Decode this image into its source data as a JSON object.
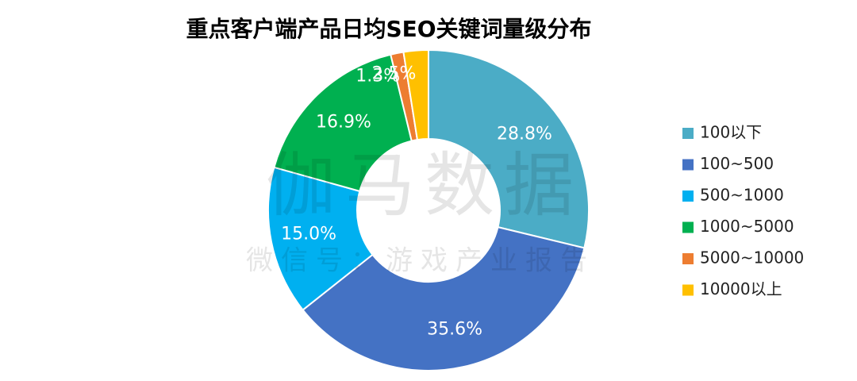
{
  "chart_data": {
    "type": "donut",
    "title": "重点客户端产品日均SEO关键词量级分布",
    "categories": [
      "100以下",
      "100~500",
      "500~1000",
      "1000~5000",
      "5000~10000",
      "10000以上"
    ],
    "values": [
      28.8,
      35.6,
      15.0,
      16.9,
      1.3,
      2.5
    ],
    "value_labels": [
      "28.8%",
      "35.6%",
      "15.0%",
      "16.9%",
      "1.3%",
      "2.5%"
    ],
    "colors": [
      "#4bacc6",
      "#4472c4",
      "#00b0f0",
      "#00b050",
      "#ed7d31",
      "#ffc000"
    ],
    "legend": "right",
    "watermark": {
      "main": "伽马数据",
      "sub": "微信号：游戏产业报告"
    }
  }
}
